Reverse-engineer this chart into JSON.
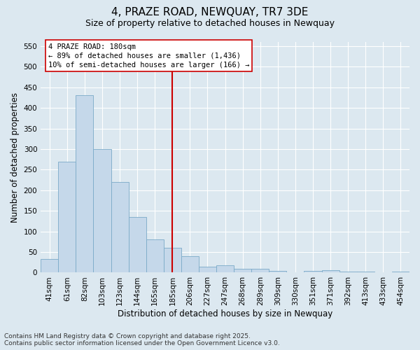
{
  "title": "4, PRAZE ROAD, NEWQUAY, TR7 3DE",
  "subtitle": "Size of property relative to detached houses in Newquay",
  "xlabel": "Distribution of detached houses by size in Newquay",
  "ylabel": "Number of detached properties",
  "footer_line1": "Contains HM Land Registry data © Crown copyright and database right 2025.",
  "footer_line2": "Contains public sector information licensed under the Open Government Licence v3.0.",
  "annotation_line1": "4 PRAZE ROAD: 180sqm",
  "annotation_line2": "← 89% of detached houses are smaller (1,436)",
  "annotation_line3": "10% of semi-detached houses are larger (166) →",
  "categories": [
    "41sqm",
    "61sqm",
    "82sqm",
    "103sqm",
    "123sqm",
    "144sqm",
    "165sqm",
    "185sqm",
    "206sqm",
    "227sqm",
    "247sqm",
    "268sqm",
    "289sqm",
    "309sqm",
    "330sqm",
    "351sqm",
    "371sqm",
    "392sqm",
    "413sqm",
    "433sqm",
    "454sqm"
  ],
  "values": [
    33,
    270,
    430,
    300,
    220,
    135,
    80,
    60,
    40,
    15,
    17,
    10,
    10,
    5,
    0,
    5,
    6,
    2,
    2,
    0,
    3
  ],
  "bar_color": "#c5d8ea",
  "bar_edge_color": "#7aaac8",
  "marker_color": "#cc0000",
  "bg_color": "#dce8f0",
  "grid_color": "#ffffff",
  "text_color": "#000000",
  "footer_color": "#333333",
  "ylim_max": 560,
  "yticks": [
    0,
    50,
    100,
    150,
    200,
    250,
    300,
    350,
    400,
    450,
    500,
    550
  ],
  "marker_bar_index": 7,
  "title_fontsize": 11,
  "subtitle_fontsize": 9,
  "ylabel_fontsize": 8.5,
  "xlabel_fontsize": 8.5,
  "tick_fontsize": 7.5,
  "ann_fontsize": 7.5,
  "footer_fontsize": 6.5
}
